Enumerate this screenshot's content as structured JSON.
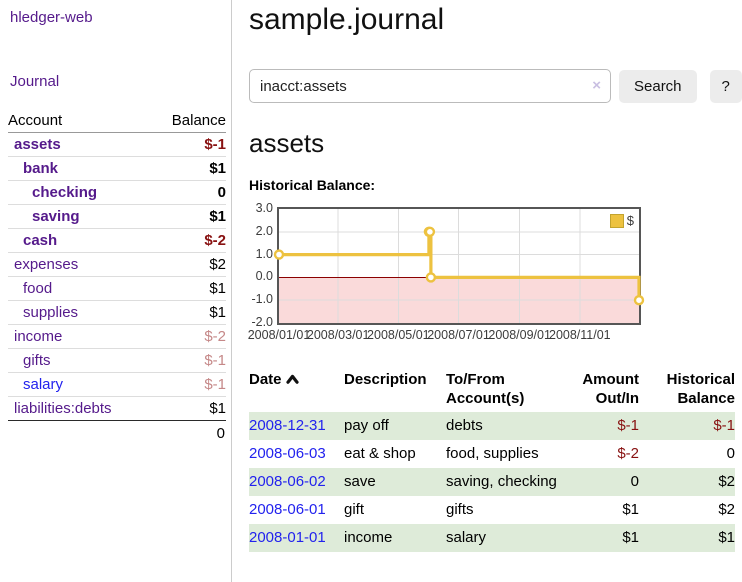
{
  "brand": "hledger-web",
  "nav": {
    "journal": "Journal"
  },
  "colors": {
    "link_visited": "#551a8b",
    "link_unvisited": "#2222ee",
    "negative_strong": "#881111",
    "negative_dim": "#c58888",
    "row_stripe_green": "#deebd9",
    "chart_series": "#edc240"
  },
  "sidebar": {
    "header": {
      "account": "Account",
      "balance": "Balance"
    },
    "accounts": [
      {
        "name": "assets",
        "depth": 1,
        "balance": "$-1",
        "matched": true,
        "negative": "strong"
      },
      {
        "name": "bank",
        "depth": 2,
        "balance": "$1",
        "matched": true
      },
      {
        "name": "checking",
        "depth": 3,
        "balance": "0",
        "matched": true
      },
      {
        "name": "saving",
        "depth": 3,
        "balance": "$1",
        "matched": true
      },
      {
        "name": "cash",
        "depth": 2,
        "balance": "$-2",
        "matched": true,
        "negative": "strong"
      },
      {
        "name": "expenses",
        "depth": 1,
        "balance": "$2"
      },
      {
        "name": "food",
        "depth": 2,
        "balance": "$1"
      },
      {
        "name": "supplies",
        "depth": 2,
        "balance": "$1"
      },
      {
        "name": "income",
        "depth": 1,
        "balance": "$-2",
        "negative": "dim"
      },
      {
        "name": "gifts",
        "depth": 2,
        "balance": "$-1",
        "negative": "dim"
      },
      {
        "name": "salary",
        "depth": 2,
        "balance": "$-1",
        "negative": "dim",
        "link": "unvisited"
      },
      {
        "name": "liabilities:debts",
        "depth": 1,
        "balance": "$1"
      }
    ],
    "total": "0"
  },
  "main": {
    "title": "sample.journal",
    "search": {
      "value": "inacct:assets",
      "clear": "×",
      "button": "Search",
      "help": "?"
    },
    "heading": "assets",
    "chart_title": "Historical Balance:"
  },
  "chart_data": {
    "type": "line",
    "step": true,
    "title": "Historical Balance",
    "legend": {
      "position": "top-right",
      "label": "$",
      "swatch": "yellow-square"
    },
    "series": [
      {
        "name": "$",
        "color": "#edc240",
        "points": [
          [
            "2008-01-01",
            1
          ],
          [
            "2008-06-01",
            2
          ],
          [
            "2008-06-02",
            2
          ],
          [
            "2008-06-03",
            0
          ],
          [
            "2008-12-31",
            -1
          ]
        ]
      }
    ],
    "x_range": [
      "2008-01-01",
      "2008-12-31"
    ],
    "ylim": [
      -2,
      3
    ],
    "y_ticks": [
      "3.0",
      "2.0",
      "1.0",
      "0.0",
      "-1.0",
      "-2.0"
    ],
    "x_ticks": [
      {
        "date": "2008-01-01",
        "label": "2008/01/01"
      },
      {
        "date": "2008-03-01",
        "label": "2008/03/01"
      },
      {
        "date": "2008-05-01",
        "label": "2008/05/01"
      },
      {
        "date": "2008-07-01",
        "label": "2008/07/01"
      },
      {
        "date": "2008-09-01",
        "label": "2008/09/01"
      },
      {
        "date": "2008-11-01",
        "label": "2008/11/01"
      }
    ],
    "grid": true,
    "grid_color": "#dcdcdc",
    "border_color": "#565656",
    "negative_fill": "#fadada",
    "zero_line_color": "#8b0000"
  },
  "register": {
    "headers": [
      {
        "lines": [
          "Date"
        ],
        "align": "left",
        "sort": "asc",
        "sort_icon": "chevron-up-icon"
      },
      {
        "lines": [
          "Description"
        ],
        "align": "left"
      },
      {
        "lines": [
          "To/From",
          "Account(s)"
        ],
        "align": "left"
      },
      {
        "lines": [
          "Amount",
          "Out/In"
        ],
        "align": "right"
      },
      {
        "lines": [
          "Historical",
          "Balance"
        ],
        "align": "right"
      }
    ],
    "rows": [
      {
        "date": "2008-12-31",
        "description": "pay off",
        "accounts": "debts",
        "amount": "$-1",
        "amount_negative": true,
        "balance": "$-1",
        "balance_negative": true
      },
      {
        "date": "2008-06-03",
        "description": "eat & shop",
        "accounts": "food, supplies",
        "amount": "$-2",
        "amount_negative": true,
        "balance": "0",
        "balance_negative": false
      },
      {
        "date": "2008-06-02",
        "description": "save",
        "accounts": "saving, checking",
        "amount": "0",
        "amount_negative": false,
        "balance": "$2",
        "balance_negative": false
      },
      {
        "date": "2008-06-01",
        "description": "gift",
        "accounts": "gifts",
        "amount": "$1",
        "amount_negative": false,
        "balance": "$2",
        "balance_negative": false
      },
      {
        "date": "2008-01-01",
        "description": "income",
        "accounts": "salary",
        "amount": "$1",
        "amount_negative": false,
        "balance": "$1",
        "balance_negative": false
      }
    ]
  }
}
